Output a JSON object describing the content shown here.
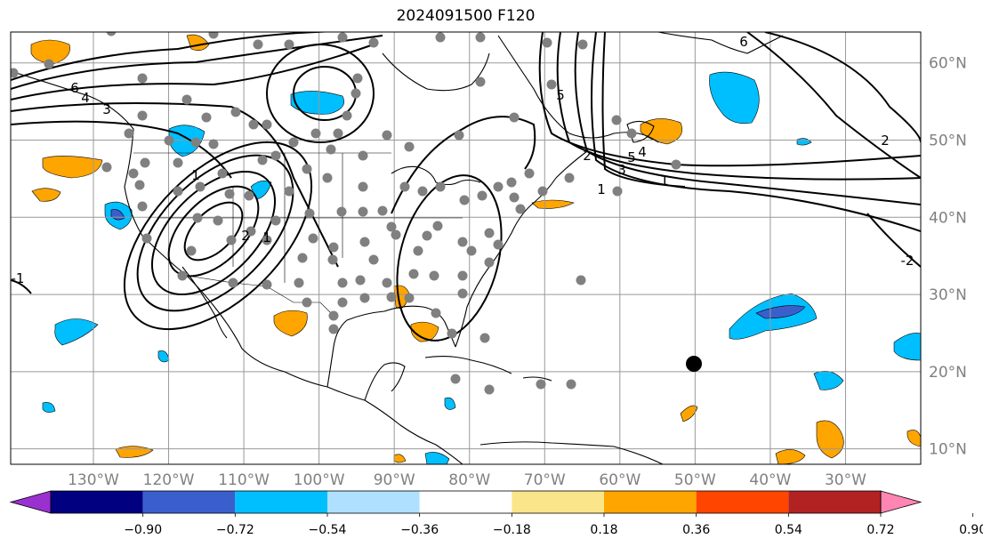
{
  "title": "2024091500 F120",
  "map": {
    "longitudes": [
      -130,
      -120,
      -110,
      -100,
      -90,
      -80,
      -70,
      -60,
      -50,
      -40,
      -30
    ],
    "latitudes": [
      10,
      20,
      30,
      40,
      50,
      60
    ],
    "lon_labels": [
      "130°W",
      "120°W",
      "110°W",
      "100°W",
      "90°W",
      "80°W",
      "70°W",
      "60°W",
      "50°W",
      "40°W",
      "30°W"
    ],
    "lat_labels": [
      "10°N",
      "20°N",
      "30°N",
      "40°N",
      "50°N",
      "60°N"
    ],
    "extent": {
      "lon_min": -141,
      "lon_max": -20,
      "lat_min": 8,
      "lat_max": 64
    },
    "contour_labels": [
      "1",
      "2",
      "3",
      "4",
      "5",
      "6",
      "1",
      "2",
      "-1",
      "-2",
      "1",
      "6",
      "5",
      "4",
      "3",
      "2",
      "1"
    ],
    "colors": {
      "ocean": "#ffffff",
      "coast": "#000000",
      "grid": "#999999",
      "stations": "#808080",
      "marker": "#000000"
    }
  },
  "colorbar": {
    "colors": [
      "#9b30d0",
      "#000080",
      "#3a5fcd",
      "#00bfff",
      "#b0e0ff",
      "#ffffff",
      "#fbe58a",
      "#ffa500",
      "#ff4500",
      "#b22222",
      "#ff85b3"
    ],
    "tick_labels": [
      "−0.90",
      "−0.72",
      "−0.54",
      "−0.36",
      "−0.18",
      "0.18",
      "0.36",
      "0.54",
      "0.72",
      "0.90"
    ]
  }
}
